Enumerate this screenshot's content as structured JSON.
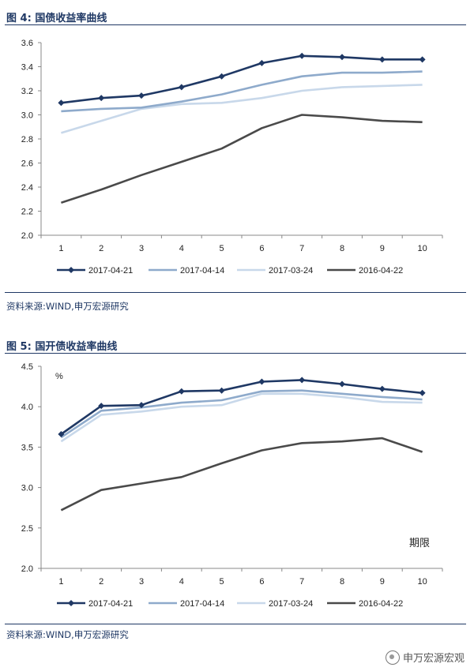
{
  "charts": [
    {
      "fig_label": "图 4:",
      "fig_title": "国债收益率曲线",
      "source": "资料来源:WIND,申万宏源研究"
    },
    {
      "fig_label": "图 5:",
      "fig_title": "国开债收益率曲线",
      "source": "资料来源:WIND,申万宏源研究"
    }
  ],
  "watermark": "申万宏源宏观",
  "colors": {
    "s1": "#1f3864",
    "s2": "#8eaacb",
    "s3": "#c8d8ea",
    "s4": "#4a4a4a",
    "title": "#1f3864"
  },
  "chart_data": [
    {
      "type": "line",
      "title": "国债收益率曲线",
      "categories": [
        "1",
        "2",
        "3",
        "4",
        "5",
        "6",
        "7",
        "8",
        "9",
        "10"
      ],
      "ylim": [
        2.0,
        3.6
      ],
      "yticks": [
        "2.0",
        "2.2",
        "2.4",
        "2.6",
        "2.8",
        "3.0",
        "3.2",
        "3.4",
        "3.6"
      ],
      "ylabel": "",
      "annotation": "",
      "legend_position": "bottom",
      "series": [
        {
          "name": "2017-04-21",
          "color_key": "s1",
          "markers": true,
          "values": [
            3.1,
            3.14,
            3.16,
            3.23,
            3.32,
            3.43,
            3.49,
            3.48,
            3.46,
            3.46
          ]
        },
        {
          "name": "2017-04-14",
          "color_key": "s2",
          "markers": false,
          "values": [
            3.03,
            3.05,
            3.06,
            3.11,
            3.17,
            3.25,
            3.32,
            3.35,
            3.35,
            3.36
          ]
        },
        {
          "name": "2017-03-24",
          "color_key": "s3",
          "markers": false,
          "values": [
            2.85,
            2.95,
            3.05,
            3.09,
            3.1,
            3.14,
            3.2,
            3.23,
            3.24,
            3.25
          ]
        },
        {
          "name": "2016-04-22",
          "color_key": "s4",
          "markers": false,
          "values": [
            2.27,
            2.38,
            2.5,
            2.61,
            2.72,
            2.89,
            3.0,
            2.98,
            2.95,
            2.94
          ]
        }
      ]
    },
    {
      "type": "line",
      "title": "国开债收益率曲线",
      "categories": [
        "1",
        "2",
        "3",
        "4",
        "5",
        "6",
        "7",
        "8",
        "9",
        "10"
      ],
      "ylim": [
        2.0,
        4.5
      ],
      "yticks": [
        "2.0",
        "2.5",
        "3.0",
        "3.5",
        "4.0",
        "4.5"
      ],
      "ylabel": "%",
      "annotation": "期限",
      "legend_position": "bottom",
      "series": [
        {
          "name": "2017-04-21",
          "color_key": "s1",
          "markers": true,
          "values": [
            3.66,
            4.01,
            4.02,
            4.19,
            4.2,
            4.31,
            4.33,
            4.28,
            4.22,
            4.17
          ]
        },
        {
          "name": "2017-04-14",
          "color_key": "s2",
          "markers": false,
          "values": [
            3.62,
            3.95,
            3.99,
            4.05,
            4.08,
            4.19,
            4.2,
            4.16,
            4.12,
            4.09
          ]
        },
        {
          "name": "2017-03-24",
          "color_key": "s3",
          "markers": false,
          "values": [
            3.57,
            3.9,
            3.94,
            4.0,
            4.02,
            4.16,
            4.16,
            4.12,
            4.06,
            4.05
          ]
        },
        {
          "name": "2016-04-22",
          "color_key": "s4",
          "markers": false,
          "values": [
            2.72,
            2.97,
            3.05,
            3.13,
            3.3,
            3.46,
            3.55,
            3.57,
            3.61,
            3.44
          ]
        }
      ]
    }
  ]
}
